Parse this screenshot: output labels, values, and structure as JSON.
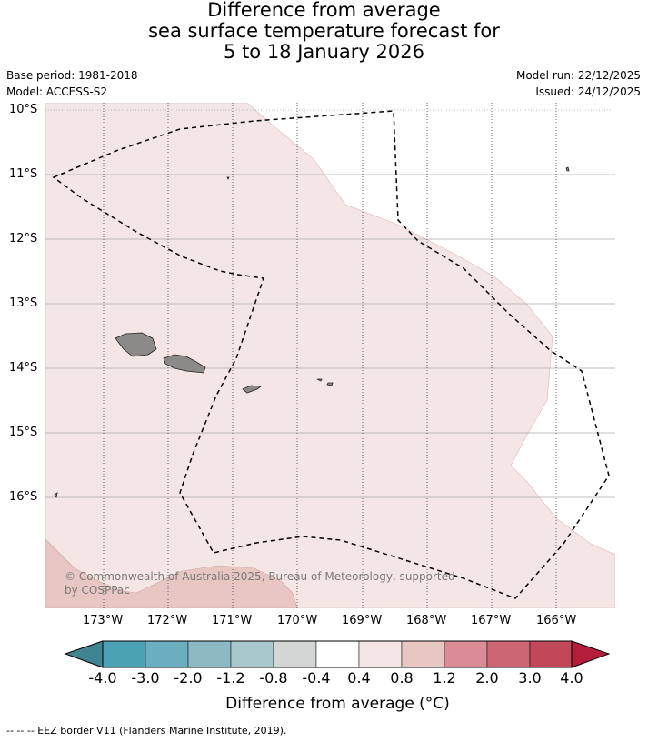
{
  "title": {
    "line1": "Difference from average",
    "line2": "sea surface temperature forecast for",
    "line3": "5 to 18 January 2026"
  },
  "meta": {
    "base_period": "Base period: 1981-2018",
    "model": "Model: ACCESS-S2",
    "model_run": "Model run: 22/12/2025",
    "issued": "Issued: 24/12/2025"
  },
  "map": {
    "lat_labels": [
      "10°S",
      "11°S",
      "12°S",
      "13°S",
      "14°S",
      "15°S",
      "16°S"
    ],
    "lon_labels": [
      "173°W",
      "172°W",
      "171°W",
      "170°W",
      "169°W",
      "168°W",
      "167°W",
      "166°W"
    ],
    "copyright_line1": "© Commonwealth of Australia 2025, Bureau of Meteorology, supported",
    "copyright_line2": "by COSPPac",
    "colors": {
      "anomaly_04_08": "#f4e6e5",
      "anomaly_08_12": "#e8c6c3",
      "land": "#8c8989",
      "eez": "#000000"
    }
  },
  "colorbar": {
    "title": "Difference from average (°C)",
    "labels": [
      "-4.0",
      "-3.0",
      "-2.0",
      "-1.2",
      "-0.8",
      "-0.4",
      "0.4",
      "0.8",
      "1.2",
      "2.0",
      "3.0",
      "4.0"
    ],
    "colors": [
      "#3f8491",
      "#4aa2b4",
      "#6aaec0",
      "#8cb9c4",
      "#a8c8cc",
      "#d4d6d6",
      "#ffffff",
      "#f4e6e5",
      "#e8c6c3",
      "#d98c95",
      "#cc6674",
      "#c04858",
      "#b41e3c"
    ]
  },
  "footer": "--  --  -- EEZ border V11 (Flanders Marine Institute, 2019)."
}
